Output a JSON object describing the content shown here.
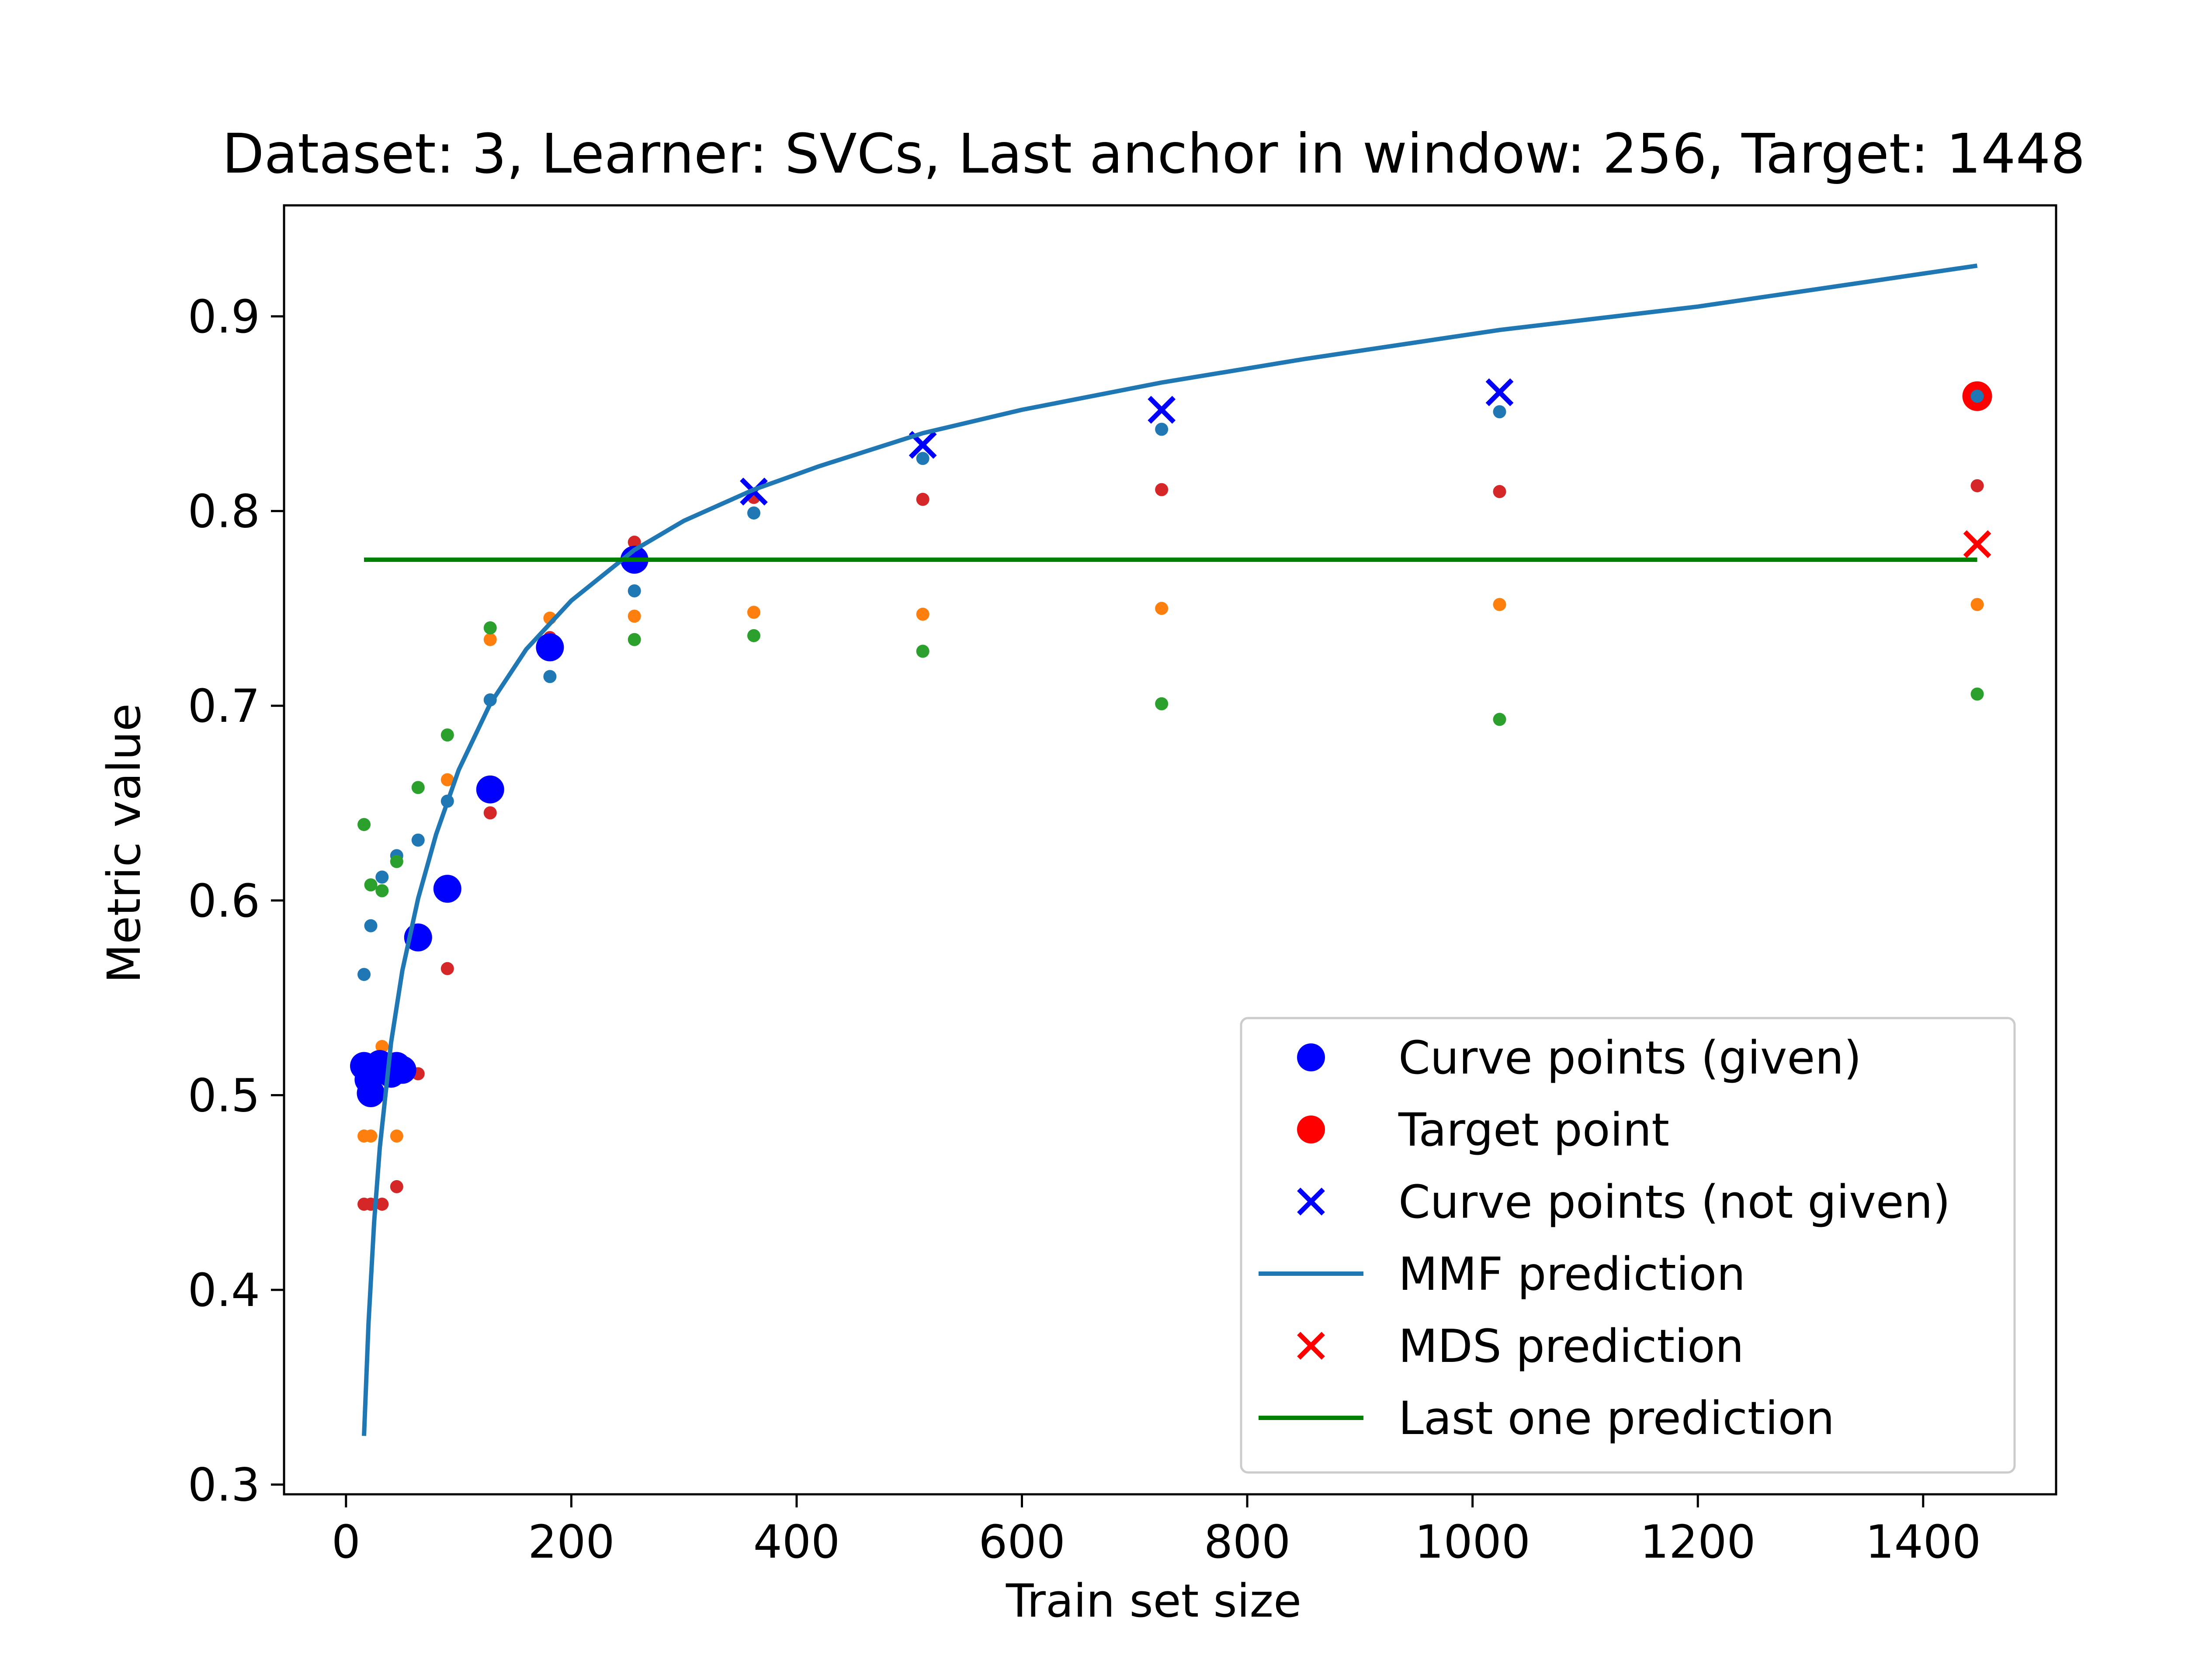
{
  "chart_data": {
    "type": "scatter",
    "title": "Dataset: 3, Learner: SVCs, Last anchor in window: 256, Target: 1448",
    "xlabel": "Train set size",
    "ylabel": "Metric value",
    "xlim": [
      -55,
      1518
    ],
    "ylim": [
      0.295,
      0.957
    ],
    "xticks": [
      0,
      200,
      400,
      600,
      800,
      1000,
      1200,
      1400
    ],
    "yticks": [
      0.3,
      0.4,
      0.5,
      0.6,
      0.7,
      0.8,
      0.9
    ],
    "grid": false,
    "legend_position": "lower right",
    "colors": {
      "curve_given": "#0000ff",
      "target": "#ff0000",
      "curve_not_given": "#0000ff",
      "mmf": "#1f77b4",
      "mds": "#ff0000",
      "last_one": "#008000",
      "bg_blue": "#1f77b4",
      "bg_orange": "#ff7f0e",
      "bg_green": "#2ca02c",
      "bg_red": "#d62728"
    },
    "legend": [
      {
        "label": "Curve points (given)",
        "marker": "dot",
        "color": "#0000ff"
      },
      {
        "label": "Target point",
        "marker": "dot",
        "color": "#ff0000"
      },
      {
        "label": "Curve points (not given)",
        "marker": "x",
        "color": "#0000ff"
      },
      {
        "label": "MMF prediction",
        "marker": "line",
        "color": "#1f77b4"
      },
      {
        "label": "MDS prediction",
        "marker": "x",
        "color": "#ff0000"
      },
      {
        "label": "Last one prediction",
        "marker": "line",
        "color": "#008000"
      }
    ],
    "series": {
      "curve_points_given": [
        {
          "x": 16,
          "y": 0.515
        },
        {
          "x": 20,
          "y": 0.508
        },
        {
          "x": 22,
          "y": 0.501
        },
        {
          "x": 26,
          "y": 0.512
        },
        {
          "x": 30,
          "y": 0.516
        },
        {
          "x": 36,
          "y": 0.514
        },
        {
          "x": 40,
          "y": 0.511
        },
        {
          "x": 45,
          "y": 0.515
        },
        {
          "x": 50,
          "y": 0.513
        },
        {
          "x": 64,
          "y": 0.581
        },
        {
          "x": 90,
          "y": 0.606
        },
        {
          "x": 128,
          "y": 0.657
        },
        {
          "x": 181,
          "y": 0.73
        },
        {
          "x": 256,
          "y": 0.775
        }
      ],
      "target_point": [
        {
          "x": 1448,
          "y": 0.859
        }
      ],
      "curve_points_not_given": [
        {
          "x": 362,
          "y": 0.81
        },
        {
          "x": 512,
          "y": 0.834
        },
        {
          "x": 724,
          "y": 0.852
        },
        {
          "x": 1024,
          "y": 0.861
        }
      ],
      "mds_prediction": [
        {
          "x": 1448,
          "y": 0.783
        }
      ],
      "last_one_prediction": {
        "x": [
          16,
          1448
        ],
        "y": 0.775
      },
      "mmf_prediction": {
        "x": [
          16,
          20,
          25,
          30,
          40,
          50,
          64,
          80,
          100,
          128,
          160,
          200,
          256,
          300,
          362,
          420,
          512,
          600,
          724,
          850,
          1024,
          1200,
          1448
        ],
        "y": [
          0.325,
          0.383,
          0.435,
          0.473,
          0.527,
          0.564,
          0.601,
          0.634,
          0.667,
          0.701,
          0.729,
          0.754,
          0.78,
          0.795,
          0.811,
          0.823,
          0.84,
          0.852,
          0.866,
          0.878,
          0.893,
          0.905,
          0.926
        ]
      },
      "background_blue": [
        {
          "x": 16,
          "y": 0.562
        },
        {
          "x": 22,
          "y": 0.587
        },
        {
          "x": 32,
          "y": 0.612
        },
        {
          "x": 45,
          "y": 0.623
        },
        {
          "x": 64,
          "y": 0.631
        },
        {
          "x": 90,
          "y": 0.651
        },
        {
          "x": 128,
          "y": 0.703
        },
        {
          "x": 181,
          "y": 0.715
        },
        {
          "x": 256,
          "y": 0.759
        },
        {
          "x": 362,
          "y": 0.799
        },
        {
          "x": 512,
          "y": 0.827
        },
        {
          "x": 724,
          "y": 0.842
        },
        {
          "x": 1024,
          "y": 0.851
        },
        {
          "x": 1448,
          "y": 0.859
        }
      ],
      "background_orange": [
        {
          "x": 16,
          "y": 0.479
        },
        {
          "x": 22,
          "y": 0.479
        },
        {
          "x": 32,
          "y": 0.525
        },
        {
          "x": 45,
          "y": 0.479
        },
        {
          "x": 90,
          "y": 0.662
        },
        {
          "x": 128,
          "y": 0.734
        },
        {
          "x": 181,
          "y": 0.745
        },
        {
          "x": 256,
          "y": 0.746
        },
        {
          "x": 362,
          "y": 0.748
        },
        {
          "x": 512,
          "y": 0.747
        },
        {
          "x": 724,
          "y": 0.75
        },
        {
          "x": 1024,
          "y": 0.752
        },
        {
          "x": 1448,
          "y": 0.752
        }
      ],
      "background_green": [
        {
          "x": 16,
          "y": 0.639
        },
        {
          "x": 22,
          "y": 0.608
        },
        {
          "x": 32,
          "y": 0.605
        },
        {
          "x": 45,
          "y": 0.62
        },
        {
          "x": 64,
          "y": 0.658
        },
        {
          "x": 90,
          "y": 0.685
        },
        {
          "x": 128,
          "y": 0.74
        },
        {
          "x": 256,
          "y": 0.734
        },
        {
          "x": 362,
          "y": 0.736
        },
        {
          "x": 512,
          "y": 0.728
        },
        {
          "x": 724,
          "y": 0.701
        },
        {
          "x": 1024,
          "y": 0.693
        },
        {
          "x": 1448,
          "y": 0.706
        }
      ],
      "background_red": [
        {
          "x": 16,
          "y": 0.444
        },
        {
          "x": 22,
          "y": 0.444
        },
        {
          "x": 32,
          "y": 0.444
        },
        {
          "x": 45,
          "y": 0.453
        },
        {
          "x": 64,
          "y": 0.511
        },
        {
          "x": 90,
          "y": 0.565
        },
        {
          "x": 128,
          "y": 0.645
        },
        {
          "x": 181,
          "y": 0.735
        },
        {
          "x": 256,
          "y": 0.784
        },
        {
          "x": 362,
          "y": 0.807
        },
        {
          "x": 512,
          "y": 0.806
        },
        {
          "x": 724,
          "y": 0.811
        },
        {
          "x": 1024,
          "y": 0.81
        },
        {
          "x": 1448,
          "y": 0.813
        }
      ]
    }
  }
}
